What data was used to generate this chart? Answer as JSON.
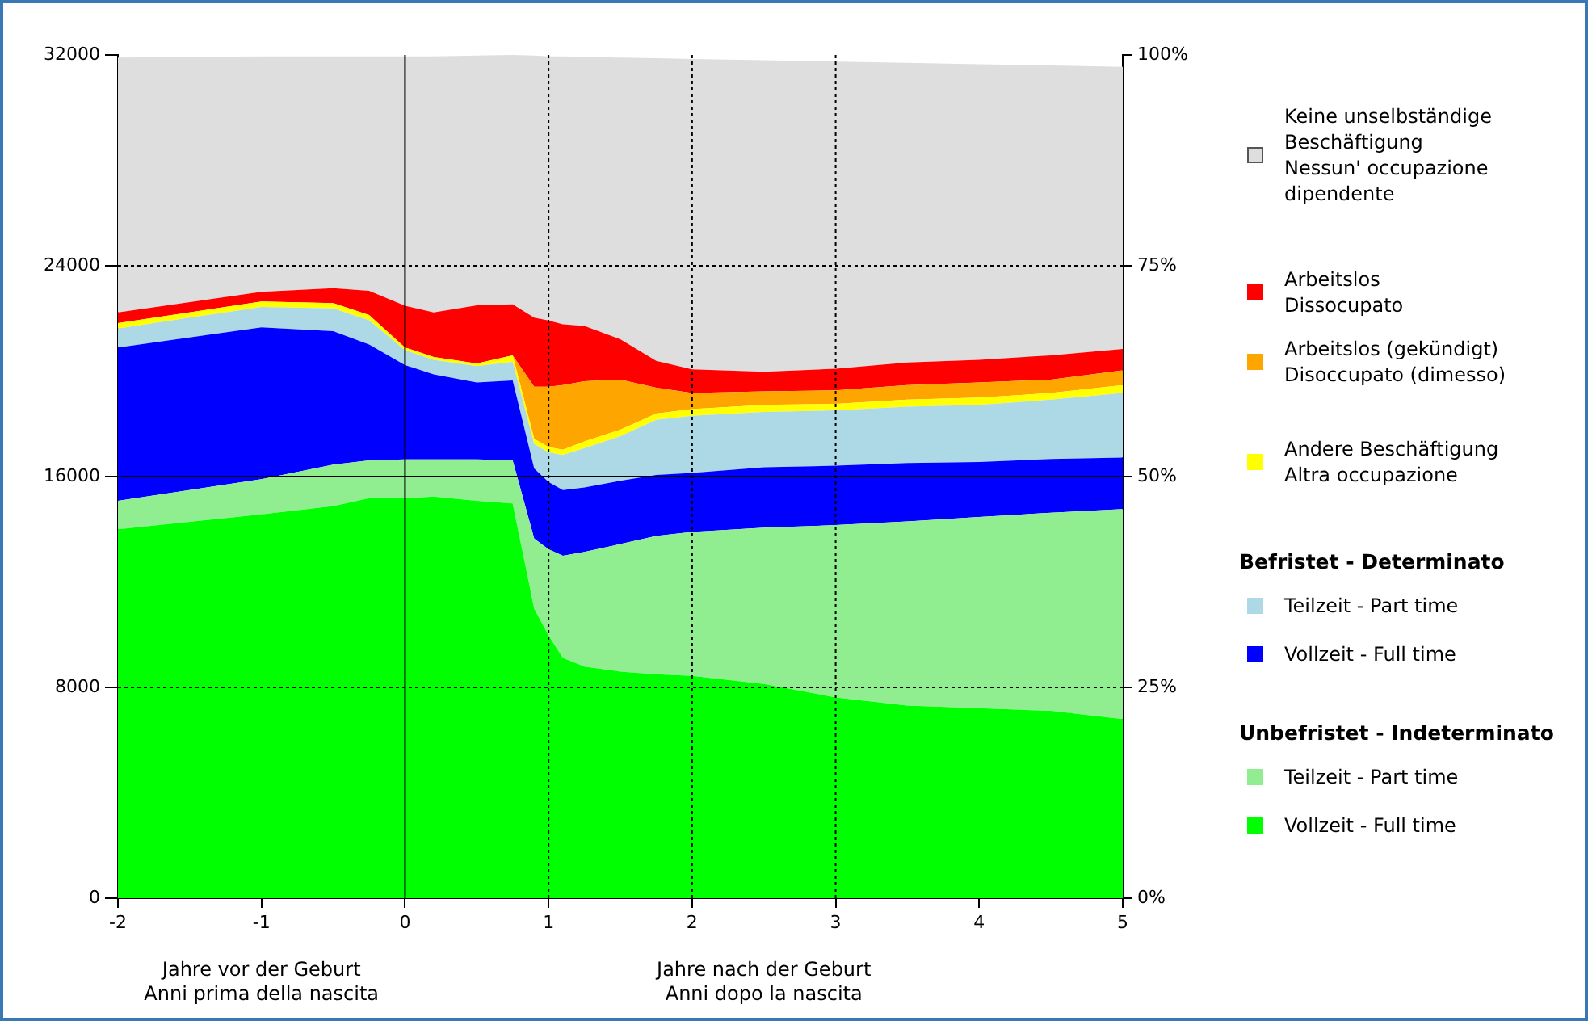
{
  "chart_data": {
    "type": "area",
    "stacked": true,
    "x": [
      -2,
      -1,
      -0.5,
      -0.25,
      0,
      0.2,
      0.5,
      0.75,
      0.9,
      1,
      1.1,
      1.25,
      1.5,
      1.75,
      2,
      2.5,
      3,
      3.5,
      4,
      4.5,
      5
    ],
    "series": [
      {
        "name": "Vollzeit - Full time",
        "color": "#00ff00",
        "values": [
          14000,
          14570,
          14880,
          15180,
          15180,
          15240,
          15080,
          14980,
          10990,
          9970,
          9120,
          8790,
          8600,
          8500,
          8440,
          8130,
          7620,
          7310,
          7210,
          7110,
          6800
        ]
      },
      {
        "name": "Teilzeit - Part time",
        "color": "#90ee90",
        "values": [
          1080,
          1330,
          1570,
          1430,
          1470,
          1410,
          1570,
          1630,
          2660,
          3270,
          3880,
          4350,
          4840,
          5250,
          5460,
          5930,
          6540,
          6990,
          7260,
          7520,
          7970
        ]
      },
      {
        "name": "Vollzeit - Full time",
        "color": "#0000ff",
        "values": [
          5820,
          5760,
          5070,
          4400,
          3580,
          3230,
          2920,
          3040,
          2660,
          2550,
          2490,
          2450,
          2400,
          2310,
          2240,
          2290,
          2250,
          2210,
          2080,
          2040,
          1950
        ]
      },
      {
        "name": "Teilzeit - Part time",
        "color": "#add8e6",
        "values": [
          720,
          780,
          860,
          920,
          570,
          550,
          620,
          700,
          920,
          1130,
          1330,
          1490,
          1690,
          2090,
          2170,
          2100,
          2100,
          2140,
          2170,
          2250,
          2450
        ]
      },
      {
        "name": "Andere Beschäftigung\nAltra occupazione",
        "color": "#ffff00",
        "values": [
          200,
          200,
          200,
          200,
          100,
          110,
          100,
          250,
          200,
          200,
          200,
          250,
          250,
          240,
          250,
          270,
          250,
          270,
          280,
          250,
          300
        ]
      },
      {
        "name": "Arbeitslos (gekündigt)\nDisoccupato (dimesso)",
        "color": "#ffa500",
        "values": [
          0,
          0,
          0,
          0,
          0,
          0,
          0,
          0,
          1980,
          2290,
          2450,
          2290,
          1900,
          980,
          610,
          510,
          510,
          550,
          570,
          510,
          560
        ]
      },
      {
        "name": "Arbeitslos\nDissocupato",
        "color": "#ff0000",
        "values": [
          410,
          370,
          570,
          920,
          1580,
          1690,
          2210,
          1940,
          2620,
          2510,
          2310,
          2100,
          1530,
          1020,
          900,
          750,
          820,
          860,
          860,
          920,
          810
        ]
      },
      {
        "name": "Keine unselbständige Beschäftigung\nNessun' occupazione dipendente",
        "color": "#dedede",
        "values": [
          9670,
          8940,
          8800,
          8900,
          9470,
          9720,
          9480,
          9460,
          9950,
          10030,
          10170,
          10210,
          10690,
          11490,
          11780,
          11820,
          11660,
          11370,
          11220,
          11000,
          10710
        ]
      }
    ],
    "xlim": [
      -2,
      5
    ],
    "xticks": [
      -2,
      -1,
      0,
      1,
      2,
      3,
      4,
      5
    ],
    "ylim": [
      0,
      32000
    ],
    "yticks": [
      0,
      8000,
      16000,
      24000,
      32000
    ],
    "y2lim": [
      0,
      100
    ],
    "y2ticks": [
      {
        "value": 0,
        "label": "0%"
      },
      {
        "value": 25,
        "label": "25%"
      },
      {
        "value": 50,
        "label": "50%"
      },
      {
        "value": 75,
        "label": "75%"
      },
      {
        "value": 100,
        "label": "100%"
      }
    ],
    "ref_lines": [
      {
        "axis": "x",
        "value": 0,
        "line_style": "solid",
        "color": "#000000"
      },
      {
        "axis": "x",
        "value": 1,
        "line_style": "dotted",
        "color": "#000000"
      },
      {
        "axis": "x",
        "value": 2,
        "line_style": "dotted",
        "color": "#000000"
      },
      {
        "axis": "x",
        "value": 3,
        "line_style": "dotted",
        "color": "#000000"
      },
      {
        "axis": "y",
        "value": 8000,
        "line_style": "dotted",
        "color": "#000000"
      },
      {
        "axis": "y",
        "value": 16000,
        "line_style": "solid",
        "color": "#000000"
      },
      {
        "axis": "y",
        "value": 24000,
        "line_style": "dotted",
        "color": "#000000"
      }
    ],
    "annotations": [
      "Jahre vor der Geburt\nAnni prima della nascita",
      "Jahre nach der Geburt\nAnni dopo la nascita",
      "Befristet - Determinato",
      "Unbefristet - Indeterminato"
    ],
    "legend": "right",
    "grid": false
  }
}
